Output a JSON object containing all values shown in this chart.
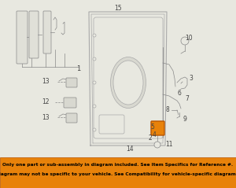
{
  "bg_color": "#e8e8e0",
  "diagram_bg": "#e8e8e0",
  "footer_bg": "#e8820a",
  "footer_text_color": "#000000",
  "footer_border_color": "#b85500",
  "footer_line1": "Only one part or sub-assembly in diagram included. See Item Specifics for Reference #.",
  "footer_line2": "Diagram may not be specific to your vehicle. See Compatibility for vehicle-specific diagrams.",
  "line_color": "#aaaaaa",
  "dark_line": "#888888",
  "orange": "#e8820a",
  "orange_edge": "#b85500",
  "label_color": "#555555",
  "fig_w": 3.0,
  "fig_h": 2.39,
  "dpi": 100
}
